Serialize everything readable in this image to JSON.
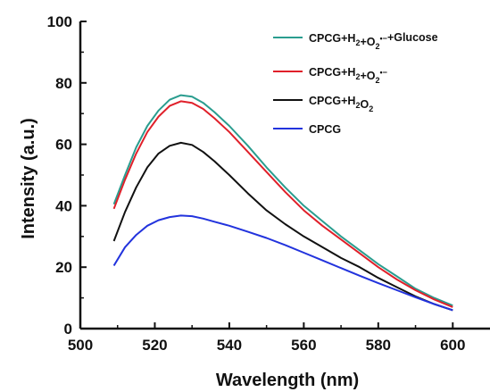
{
  "chart_data": {
    "type": "line",
    "xlabel": "Wavelength (nm)",
    "ylabel": "Intensity (a.u.)",
    "xlim": [
      500,
      610
    ],
    "ylim": [
      0,
      100
    ],
    "xticks": [
      500,
      520,
      540,
      560,
      580,
      600
    ],
    "yticks": [
      0,
      20,
      40,
      60,
      80,
      100
    ],
    "grid": false,
    "legend_position": "top-right",
    "series": [
      {
        "name": "CPCG+H2O2+O2•−+Glucose",
        "color": "#2a9d8f",
        "x": [
          509,
          512,
          515,
          518,
          521,
          524,
          527,
          530,
          533,
          536,
          540,
          545,
          550,
          555,
          560,
          565,
          570,
          575,
          580,
          585,
          590,
          595,
          600
        ],
        "y": [
          40.5,
          50,
          59,
          66,
          71,
          74.5,
          76,
          75.5,
          73.5,
          70.5,
          66,
          59.5,
          52.5,
          46,
          40,
          35,
          30,
          25.5,
          21,
          17,
          13,
          10,
          7.5
        ]
      },
      {
        "name": "CPCG+H2O2+O2•−",
        "color": "#e0202a",
        "x": [
          509,
          512,
          515,
          518,
          521,
          524,
          527,
          530,
          533,
          536,
          540,
          545,
          550,
          555,
          560,
          565,
          570,
          575,
          580,
          585,
          590,
          595,
          600
        ],
        "y": [
          39,
          48.5,
          57,
          64,
          69,
          72.5,
          74,
          73.5,
          71.5,
          68.5,
          64,
          57.5,
          51,
          44.5,
          38.5,
          33.5,
          29,
          24.5,
          20,
          16,
          12.5,
          9.5,
          7
        ]
      },
      {
        "name": "CPCG+H2O2",
        "color": "#111111",
        "x": [
          509,
          512,
          515,
          518,
          521,
          524,
          527,
          530,
          533,
          536,
          540,
          545,
          550,
          555,
          560,
          565,
          570,
          575,
          580,
          585,
          590,
          595,
          600
        ],
        "y": [
          28.5,
          38,
          46,
          52.5,
          57,
          59.5,
          60.5,
          59.8,
          57.5,
          54.5,
          50,
          44,
          38.5,
          34,
          30,
          26.5,
          23,
          20,
          16.5,
          13.5,
          10.5,
          8,
          6
        ]
      },
      {
        "name": "CPCG",
        "color": "#2233dd",
        "x": [
          509,
          512,
          515,
          518,
          521,
          524,
          527,
          530,
          533,
          536,
          540,
          545,
          550,
          555,
          560,
          565,
          570,
          575,
          580,
          585,
          590,
          595,
          600
        ],
        "y": [
          20.5,
          26.5,
          30.5,
          33.5,
          35.3,
          36.3,
          36.8,
          36.6,
          35.8,
          34.8,
          33.5,
          31.5,
          29.5,
          27.2,
          24.7,
          22.2,
          19.7,
          17.2,
          14.8,
          12.5,
          10.2,
          8,
          6
        ]
      }
    ]
  }
}
